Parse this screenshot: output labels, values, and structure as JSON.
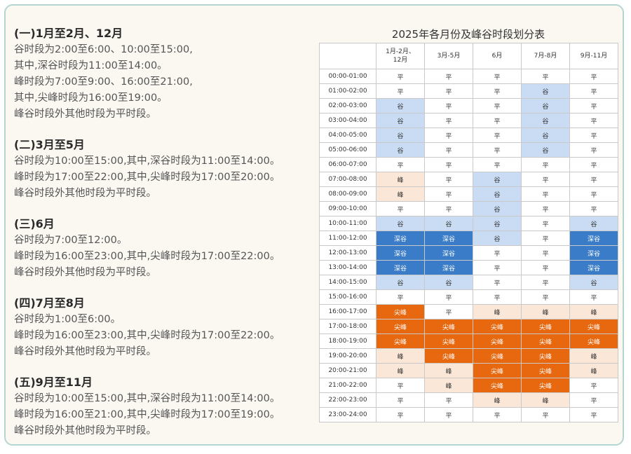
{
  "sections": [
    {
      "title": "(一)1月至2月、12月",
      "lines": [
        "谷时段为2:00至6:00、10:00至15:00,",
        "其中,深谷时段为11:00至14:00。",
        "峰时段为7:00至9:00、16:00至21:00,",
        "其中,尖峰时段为16:00至19:00。",
        "峰谷时段外其他时段为平时段。"
      ]
    },
    {
      "title": "(二)3月至5月",
      "lines": [
        "谷时段为10:00至15:00,其中,深谷时段为11:00至14:00。",
        "峰时段为17:00至22:00,其中,尖峰时段为17:00至20:00。",
        "峰谷时段外其他时段为平时段。"
      ]
    },
    {
      "title": "(三)6月",
      "lines": [
        "谷时段为7:00至12:00。",
        "峰时段为16:00至23:00,其中,尖峰时段为17:00至22:00。",
        "峰谷时段外其他时段为平时段。"
      ]
    },
    {
      "title": "(四)7月至8月",
      "lines": [
        "谷时段为1:00至6:00。",
        "峰时段为16:00至23:00,其中,尖峰时段为17:00至22:00。",
        "峰谷时段外其他时段为平时段。"
      ]
    },
    {
      "title": "(五)9月至11月",
      "lines": [
        "谷时段为10:00至15:00,其中,深谷时段为11:00至14:00。",
        "峰时段为16:00至21:00,其中,尖峰时段为17:00至19:00。",
        "峰谷时段外其他时段为平时段。"
      ]
    }
  ],
  "table": {
    "title": "2025年各月份及峰谷时段划分表",
    "headers": [
      "1月-2月、\n12月",
      "3月-5月",
      "6月",
      "7月-8月",
      "9月-11月"
    ],
    "colors": {
      "谷": "#c9dcf3",
      "深谷": "#3b7cc8",
      "峰": "#fbe7d7",
      "尖峰": "#e8680f",
      "平": "#ffffff"
    },
    "rows": [
      {
        "time": "00:00-01:00",
        "cells": [
          "平",
          "平",
          "平",
          "平",
          "平"
        ]
      },
      {
        "time": "01:00-02:00",
        "cells": [
          "平",
          "平",
          "平",
          "谷",
          "平"
        ]
      },
      {
        "time": "02:00-03:00",
        "cells": [
          "谷",
          "平",
          "平",
          "谷",
          "平"
        ]
      },
      {
        "time": "03:00-04:00",
        "cells": [
          "谷",
          "平",
          "平",
          "谷",
          "平"
        ]
      },
      {
        "time": "04:00-05:00",
        "cells": [
          "谷",
          "平",
          "平",
          "谷",
          "平"
        ]
      },
      {
        "time": "05:00-06:00",
        "cells": [
          "谷",
          "平",
          "平",
          "谷",
          "平"
        ]
      },
      {
        "time": "06:00-07:00",
        "cells": [
          "平",
          "平",
          "平",
          "平",
          "平"
        ]
      },
      {
        "time": "07:00-08:00",
        "cells": [
          "峰",
          "平",
          "谷",
          "平",
          "平"
        ]
      },
      {
        "time": "08:00-09:00",
        "cells": [
          "峰",
          "平",
          "谷",
          "平",
          "平"
        ]
      },
      {
        "time": "09:00-10:00",
        "cells": [
          "平",
          "平",
          "谷",
          "平",
          "平"
        ]
      },
      {
        "time": "10:00-11:00",
        "cells": [
          "谷",
          "谷",
          "谷",
          "平",
          "谷"
        ]
      },
      {
        "time": "11:00-12:00",
        "cells": [
          "深谷",
          "深谷",
          "谷",
          "平",
          "深谷"
        ]
      },
      {
        "time": "12:00-13:00",
        "cells": [
          "深谷",
          "深谷",
          "平",
          "平",
          "深谷"
        ]
      },
      {
        "time": "13:00-14:00",
        "cells": [
          "深谷",
          "深谷",
          "平",
          "平",
          "深谷"
        ]
      },
      {
        "time": "14:00-15:00",
        "cells": [
          "谷",
          "谷",
          "平",
          "平",
          "谷"
        ]
      },
      {
        "time": "15:00-16:00",
        "cells": [
          "平",
          "平",
          "平",
          "平",
          "平"
        ]
      },
      {
        "time": "16:00-17:00",
        "cells": [
          "尖峰",
          "平",
          "峰",
          "峰",
          "峰"
        ]
      },
      {
        "time": "17:00-18:00",
        "cells": [
          "尖峰",
          "尖峰",
          "尖峰",
          "尖峰",
          "尖峰"
        ]
      },
      {
        "time": "18:00-19:00",
        "cells": [
          "尖峰",
          "尖峰",
          "尖峰",
          "尖峰",
          "尖峰"
        ]
      },
      {
        "time": "19:00-20:00",
        "cells": [
          "峰",
          "尖峰",
          "尖峰",
          "尖峰",
          "峰"
        ]
      },
      {
        "time": "20:00-21:00",
        "cells": [
          "峰",
          "峰",
          "尖峰",
          "尖峰",
          "峰"
        ]
      },
      {
        "time": "21:00-22:00",
        "cells": [
          "平",
          "峰",
          "尖峰",
          "尖峰",
          "平"
        ]
      },
      {
        "time": "22:00-23:00",
        "cells": [
          "平",
          "平",
          "峰",
          "峰",
          "平"
        ]
      },
      {
        "time": "23:00-24:00",
        "cells": [
          "平",
          "平",
          "平",
          "平",
          "平"
        ]
      }
    ]
  }
}
